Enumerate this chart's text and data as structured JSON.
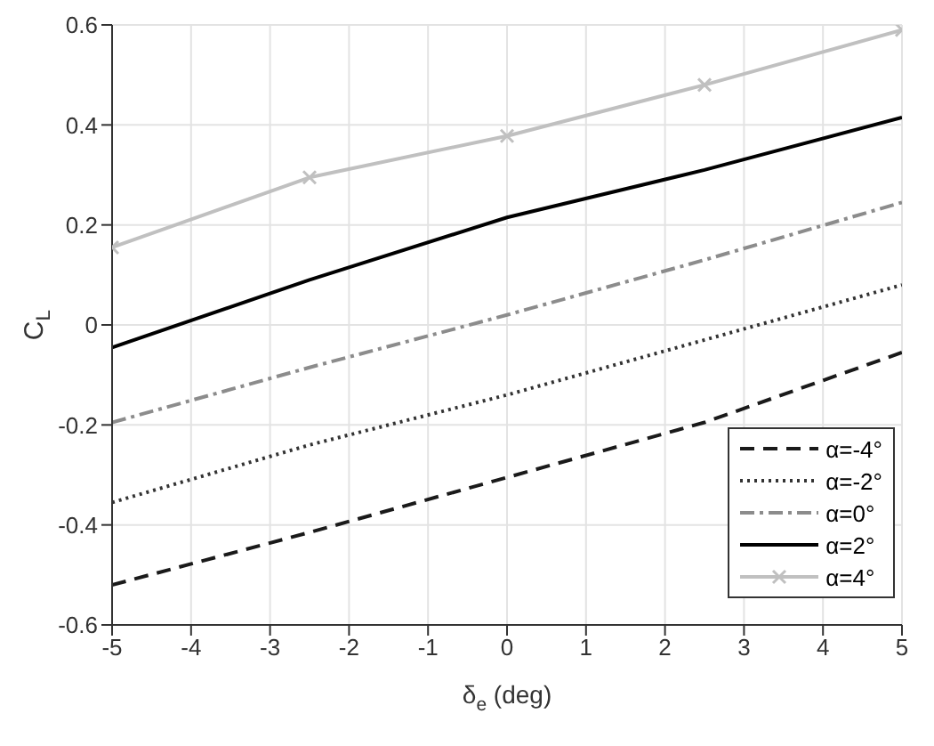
{
  "chart_data": {
    "type": "line",
    "xlabel": "δ$_{e}$ (deg)",
    "ylabel": "C$_{L}$",
    "x": [
      -5,
      -2.5,
      0,
      2.5,
      5
    ],
    "xlim": [
      -5,
      5
    ],
    "xticks": [
      -5,
      -4,
      -3,
      -2,
      -1,
      0,
      1,
      2,
      3,
      4,
      5
    ],
    "ylim": [
      -0.6,
      0.6
    ],
    "yticks": [
      -0.6,
      -0.4,
      -0.2,
      0,
      0.2,
      0.4,
      0.6
    ],
    "grid": true,
    "legend": "bottom right",
    "series": [
      {
        "name": "α=-4°",
        "color": "#1a1a1a",
        "line_style": "dashed",
        "values": [
          -0.52,
          -0.415,
          -0.305,
          -0.195,
          -0.055
        ]
      },
      {
        "name": "α=-2°",
        "color": "#333333",
        "line_style": "dotted",
        "values": [
          -0.355,
          -0.24,
          -0.14,
          -0.03,
          0.08
        ]
      },
      {
        "name": "α=0°",
        "color": "#8c8c8c",
        "line_style": "dashdot",
        "values": [
          -0.195,
          -0.085,
          0.02,
          0.13,
          0.245
        ]
      },
      {
        "name": "α=2°",
        "color": "#000000",
        "line_style": "solid",
        "values": [
          -0.045,
          0.09,
          0.215,
          0.31,
          0.415
        ]
      },
      {
        "name": "α=4°",
        "color": "#c0c0c0",
        "line_style": "solid",
        "marker": "cross",
        "values": [
          0.155,
          0.295,
          0.378,
          0.48,
          0.59
        ]
      }
    ]
  }
}
